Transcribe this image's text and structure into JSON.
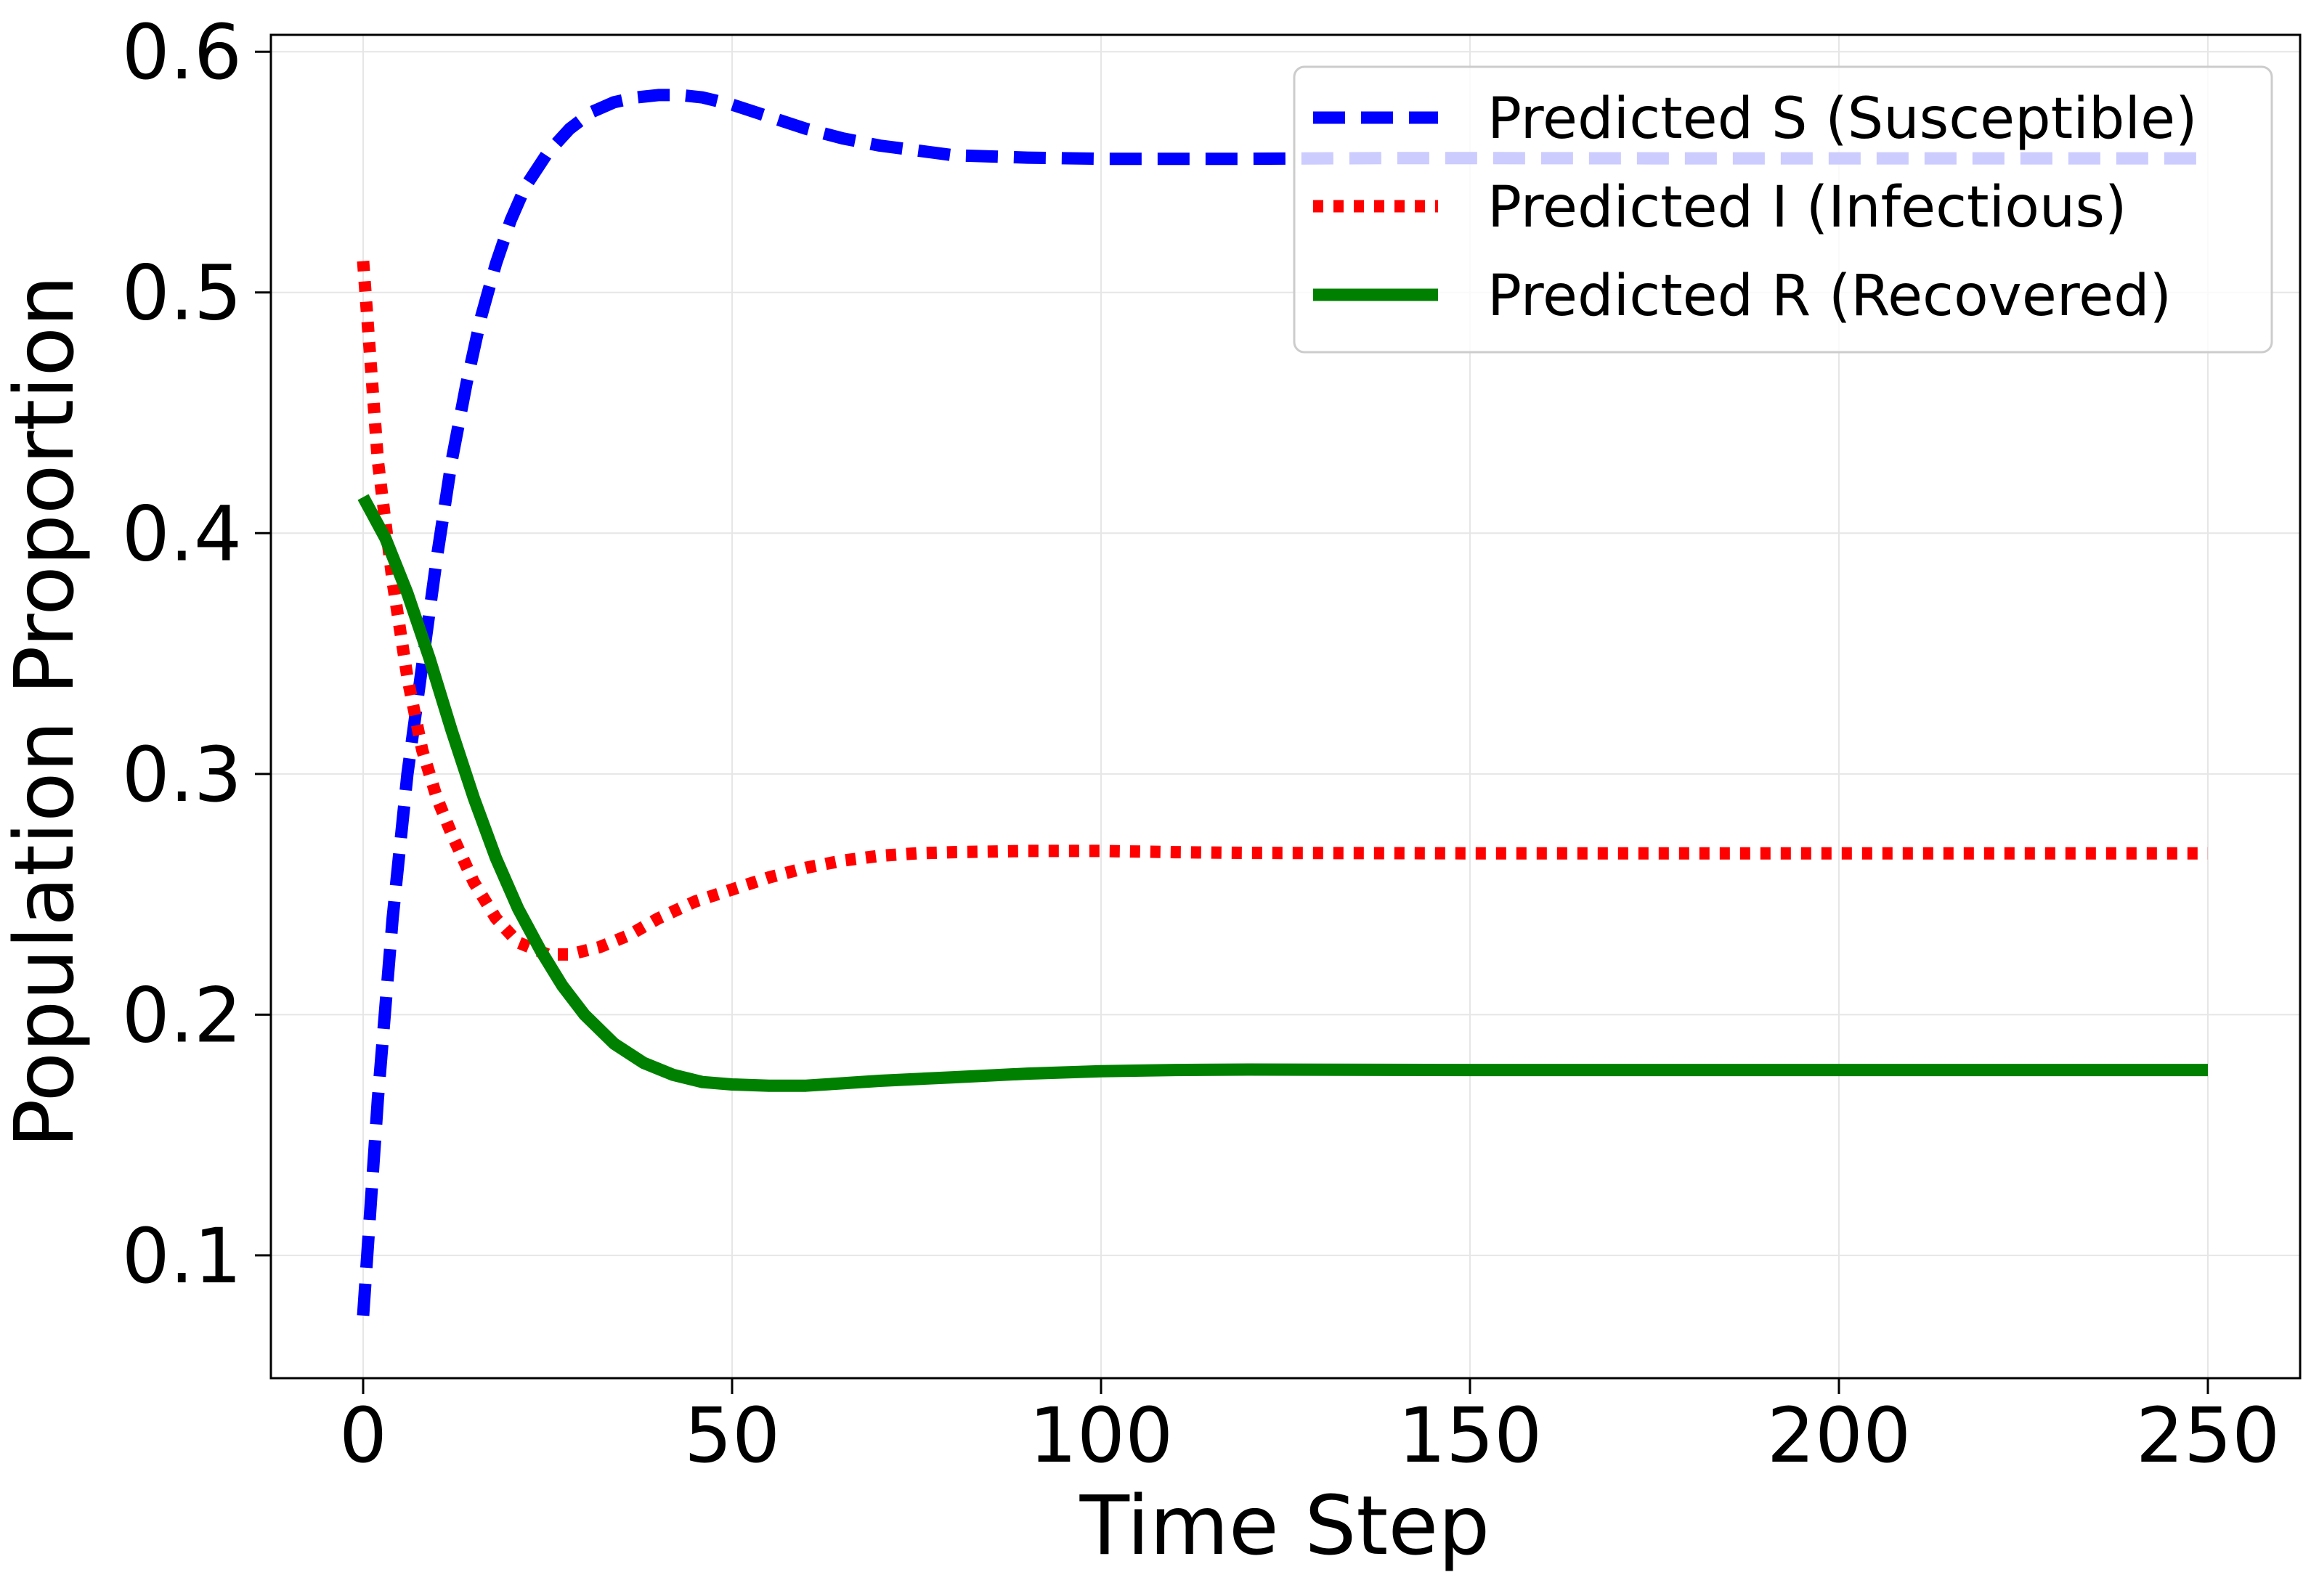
{
  "chart_data": {
    "type": "line",
    "title": "",
    "xlabel": "Time Step",
    "ylabel": "Population Proportion",
    "xlim": [
      -12.5,
      262.5
    ],
    "ylim": [
      0.049,
      0.607
    ],
    "x_ticks": [
      0,
      50,
      100,
      150,
      200,
      250
    ],
    "y_ticks": [
      0.1,
      0.2,
      0.3,
      0.4,
      0.5,
      0.6
    ],
    "x_tick_labels": [
      "0",
      "50",
      "100",
      "150",
      "200",
      "250"
    ],
    "y_tick_labels": [
      "0.1",
      "0.2",
      "0.3",
      "0.4",
      "0.5",
      "0.6"
    ],
    "grid": true,
    "legend_position": "top-right",
    "series": [
      {
        "name": "Predicted S (Susceptible)",
        "color": "#0000ff",
        "style": "dashed",
        "x": [
          0,
          2,
          4,
          6,
          8,
          10,
          12,
          14,
          16,
          18,
          20,
          22,
          25,
          28,
          31,
          34,
          37,
          40,
          43,
          46,
          50,
          55,
          60,
          65,
          70,
          75,
          80,
          90,
          100,
          110,
          120,
          130,
          140,
          150,
          175,
          200,
          225,
          250
        ],
        "values": [
          0.075,
          0.165,
          0.24,
          0.3,
          0.345,
          0.39,
          0.43,
          0.462,
          0.49,
          0.512,
          0.53,
          0.544,
          0.558,
          0.568,
          0.575,
          0.579,
          0.581,
          0.582,
          0.582,
          0.581,
          0.578,
          0.573,
          0.568,
          0.564,
          0.561,
          0.559,
          0.557,
          0.556,
          0.5555,
          0.5555,
          0.5555,
          0.5557,
          0.5558,
          0.5558,
          0.5557,
          0.5557,
          0.5557,
          0.5557
        ]
      },
      {
        "name": "Predicted I (Infectious)",
        "color": "#ff0000",
        "style": "dotted",
        "x": [
          0,
          2,
          4,
          6,
          8,
          10,
          12,
          15,
          18,
          21,
          25,
          28,
          32,
          36,
          40,
          45,
          50,
          55,
          60,
          65,
          70,
          75,
          80,
          90,
          100,
          110,
          120,
          150,
          175,
          200,
          225,
          250
        ],
        "values": [
          0.513,
          0.43,
          0.38,
          0.34,
          0.31,
          0.29,
          0.275,
          0.255,
          0.24,
          0.23,
          0.225,
          0.225,
          0.228,
          0.233,
          0.24,
          0.247,
          0.252,
          0.257,
          0.261,
          0.264,
          0.266,
          0.267,
          0.2675,
          0.268,
          0.268,
          0.2675,
          0.2672,
          0.267,
          0.267,
          0.267,
          0.267,
          0.267
        ]
      },
      {
        "name": "Predicted R (Recovered)",
        "color": "#008000",
        "style": "solid",
        "x": [
          0,
          3,
          6,
          9,
          12,
          15,
          18,
          21,
          24,
          27,
          30,
          34,
          38,
          42,
          46,
          50,
          55,
          60,
          65,
          70,
          80,
          90,
          100,
          110,
          120,
          150,
          200,
          250
        ],
        "values": [
          0.415,
          0.398,
          0.375,
          0.348,
          0.318,
          0.29,
          0.265,
          0.244,
          0.227,
          0.212,
          0.2,
          0.188,
          0.18,
          0.175,
          0.172,
          0.171,
          0.1705,
          0.1705,
          0.1715,
          0.1725,
          0.174,
          0.1755,
          0.1765,
          0.177,
          0.1772,
          0.177,
          0.177,
          0.177
        ]
      }
    ]
  }
}
